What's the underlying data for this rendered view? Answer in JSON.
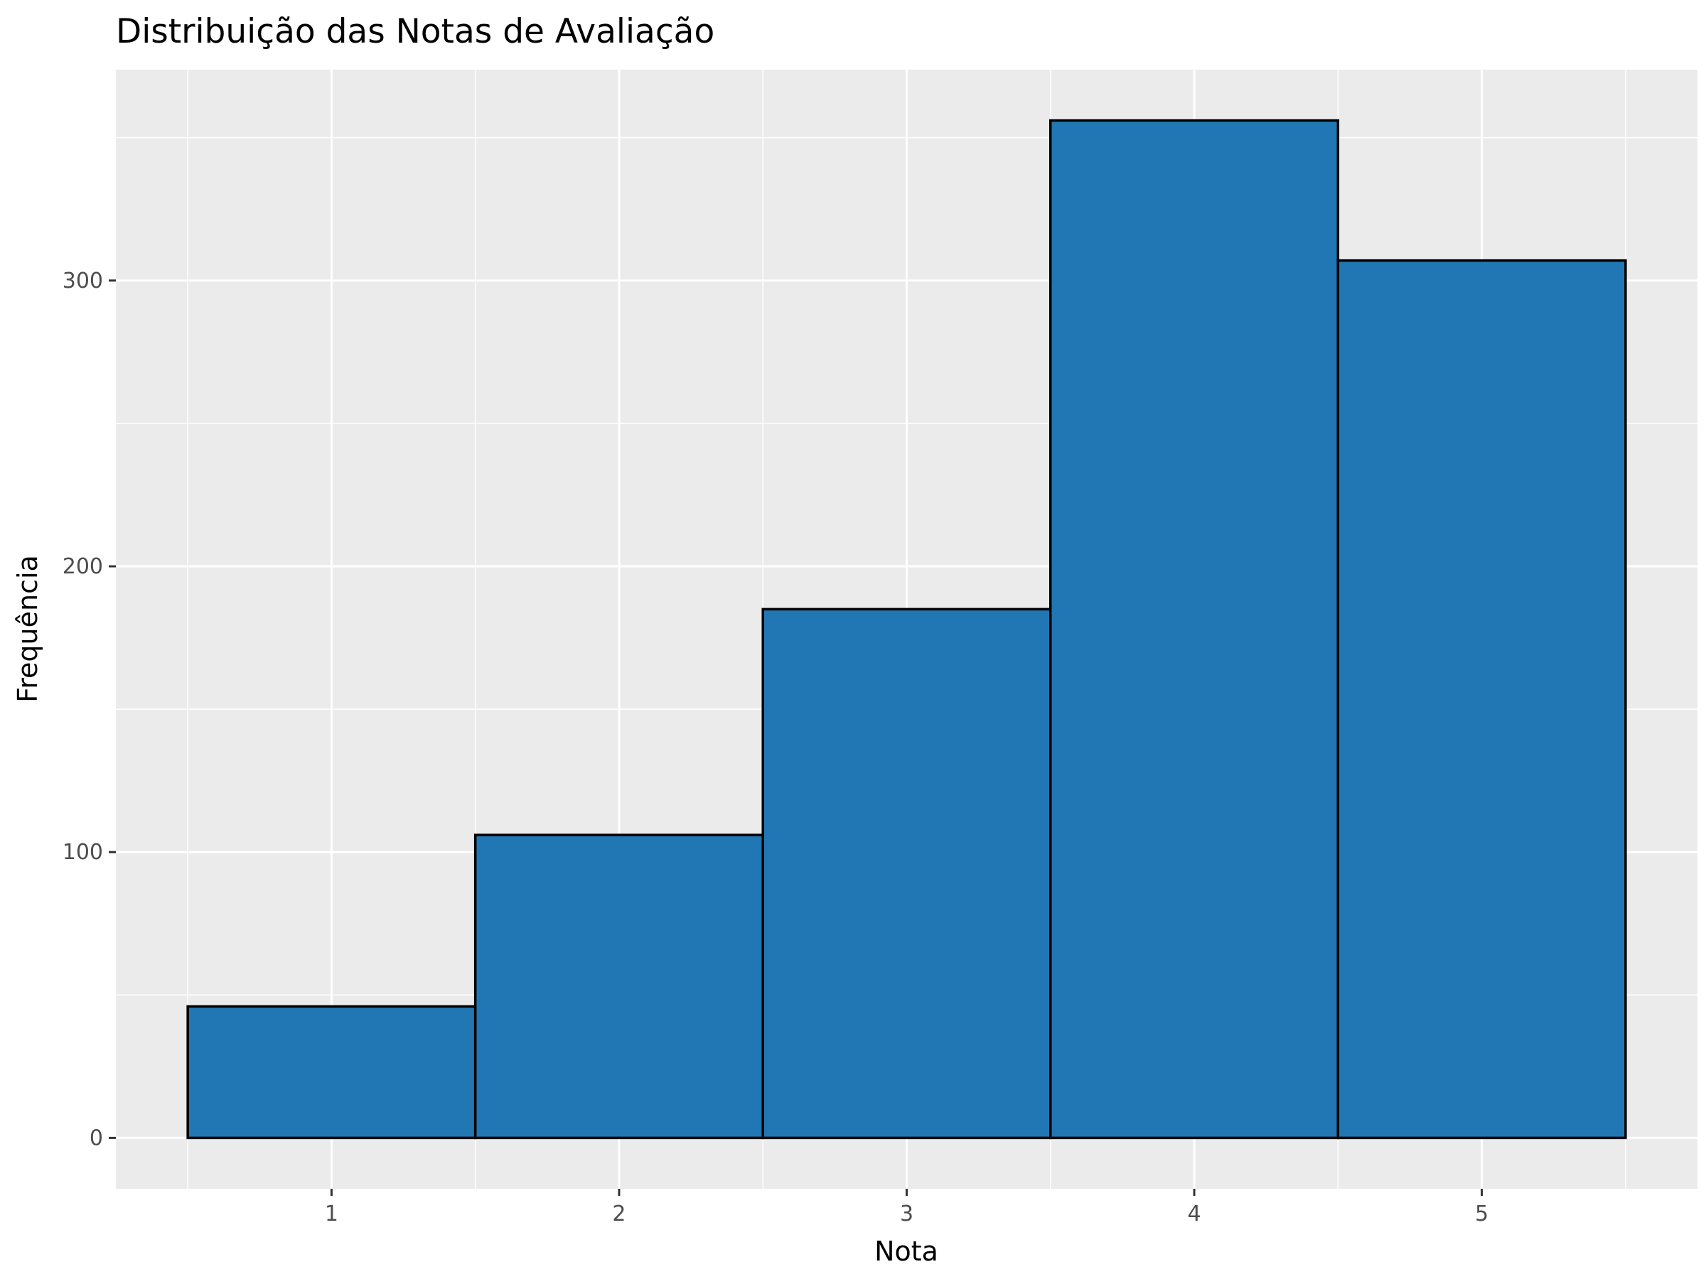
{
  "chart_data": {
    "type": "bar",
    "title": "Distribuição das Notas de Avaliação",
    "xlabel": "Nota",
    "ylabel": "Frequência",
    "categories": [
      "1",
      "2",
      "3",
      "4",
      "5"
    ],
    "values": [
      46,
      106,
      185,
      356,
      307
    ],
    "bin_edges": [
      0.5,
      1.5,
      2.5,
      3.5,
      4.5,
      5.5
    ],
    "x_ticks": [
      1,
      2,
      3,
      4,
      5
    ],
    "y_ticks": [
      0,
      100,
      200,
      300
    ],
    "xlim": [
      0.25,
      5.75
    ],
    "ylim": [
      -17.8,
      373.8
    ],
    "grid": true,
    "legend": "none",
    "colors": {
      "bar_fill": "#2077b4",
      "bar_outline": "#000000",
      "panel_background": "#ebebeb",
      "grid": "#ffffff"
    }
  }
}
